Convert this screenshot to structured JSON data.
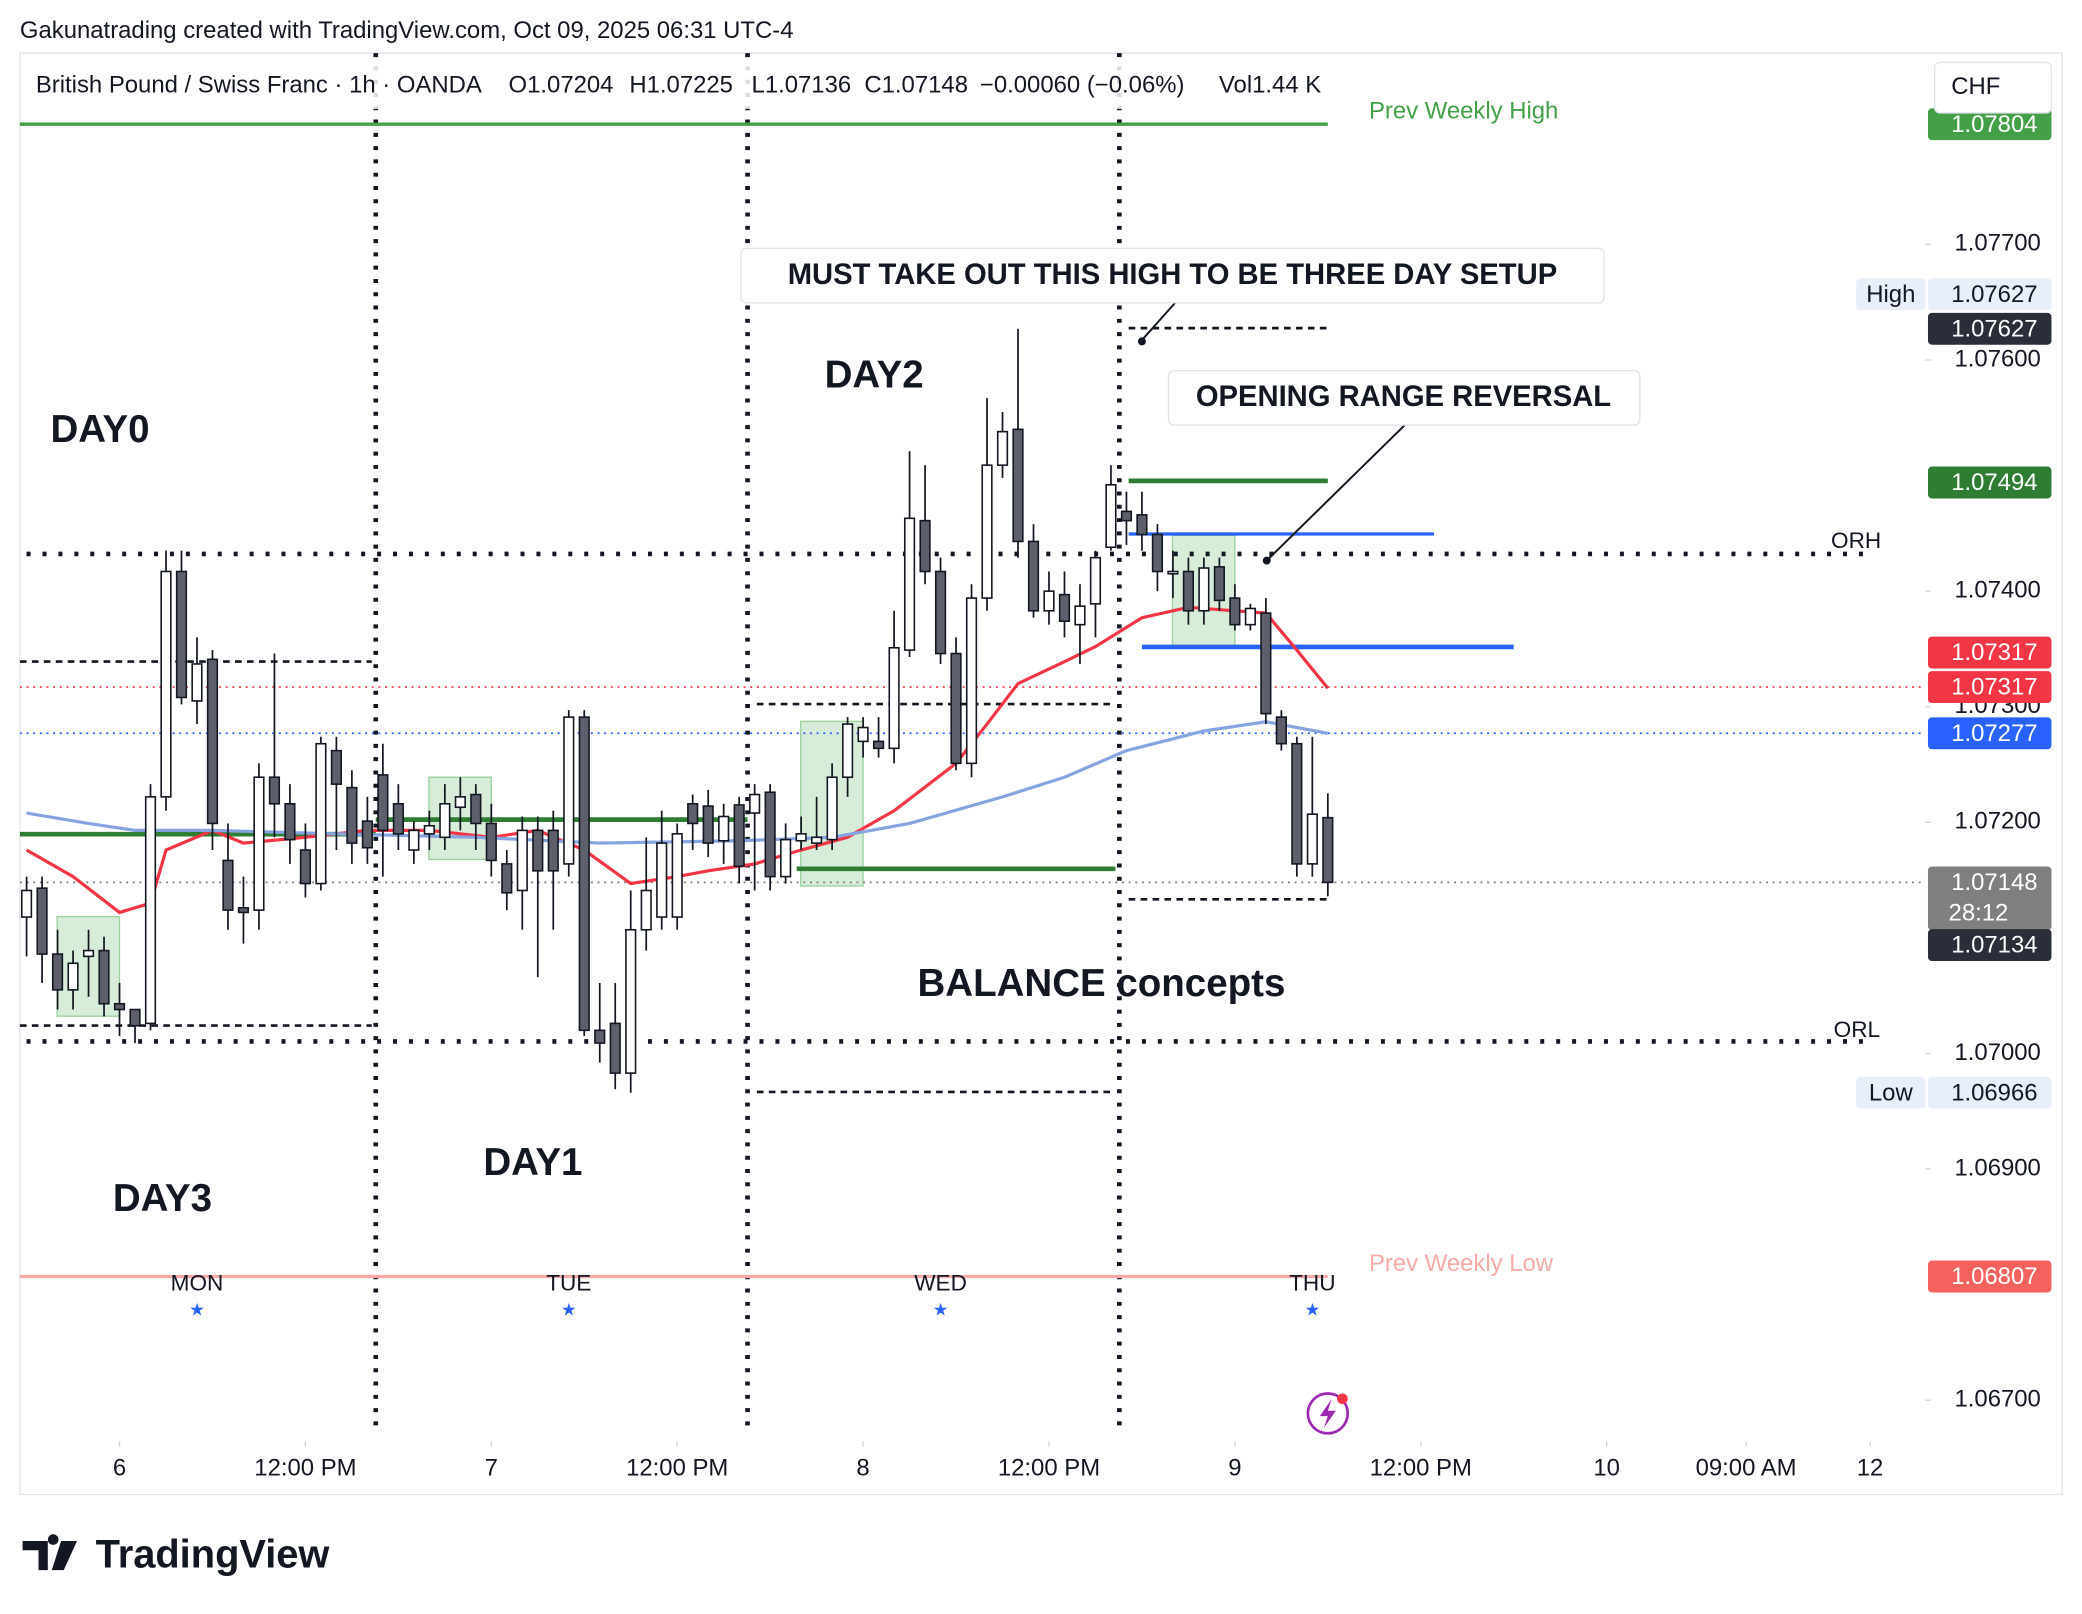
{
  "header": {
    "credit": "Gakunatrading created with TradingView.com, Oct 09, 2025 06:31 UTC-4",
    "symbol": "British Pound / Swiss Franc · 1h · OANDA",
    "open": "O1.07204",
    "high": "H1.07225",
    "low": "L1.07136",
    "close": "C1.07148",
    "change": "−0.00060 (−0.06%)",
    "volume": "Vol1.44 K",
    "currency": "CHF"
  },
  "annotations": {
    "day0": "DAY0",
    "day1": "DAY1",
    "day2": "DAY2",
    "day3": "DAY3",
    "must_take_out": "MUST TAKE OUT THIS HIGH TO BE THREE DAY SETUP",
    "opening_range_reversal": "OPENING RANGE REVERSAL",
    "balance": "BALANCE concepts",
    "orh": "ORH",
    "orl": "ORL"
  },
  "footer": {
    "logo": "TradingView"
  },
  "chart_data": {
    "type": "candlestick",
    "x": [
      -6,
      -5,
      -4,
      -3,
      -2,
      -1,
      0,
      1,
      2,
      3,
      4,
      5,
      6,
      7,
      8,
      9,
      10,
      11,
      12,
      13,
      14,
      15,
      16,
      17,
      18,
      19,
      20,
      21,
      22,
      23,
      24,
      25,
      26,
      27,
      28,
      29,
      30,
      31,
      32,
      33,
      34,
      35,
      36,
      37,
      38,
      39,
      40,
      41,
      42,
      43,
      44,
      45,
      46,
      47,
      48,
      49,
      50,
      51,
      52,
      53,
      54,
      55,
      56,
      57,
      58,
      59,
      60,
      61,
      62,
      63,
      64,
      65,
      66,
      67,
      68,
      69,
      70,
      71,
      72,
      73,
      74,
      75,
      76,
      77,
      78
    ],
    "open": [
      1.07118,
      1.07143,
      1.07086,
      1.07055,
      1.07084,
      1.07089,
      1.07043,
      1.07038,
      1.07026,
      1.07222,
      1.07417,
      1.07305,
      1.07341,
      1.07167,
      1.07126,
      1.07124,
      1.07239,
      1.07216,
      1.07176,
      1.07147,
      1.07262,
      1.0723,
      1.07201,
      1.07241,
      1.07216,
      1.07176,
      1.0719,
      1.07187,
      1.07213,
      1.07224,
      1.07199,
      1.07164,
      1.07141,
      1.07193,
      1.07193,
      1.07164,
      1.07291,
      1.0702,
      1.07026,
      1.06983,
      1.07107,
      1.07118,
      1.07118,
      1.07216,
      1.07214,
      1.07184,
      1.07215,
      1.07208,
      1.07226,
      1.07153,
      1.07184,
      1.07182,
      1.07185,
      1.07239,
      1.0727,
      1.0727,
      1.07264,
      1.07349,
      1.07461,
      1.07417,
      1.07346,
      1.07251,
      1.07394,
      1.07509,
      1.0754,
      1.07443,
      1.07383,
      1.07397,
      1.07371,
      1.07389,
      1.07438,
      1.07469,
      1.07466,
      1.07449,
      1.07415,
      1.07417,
      1.07383,
      1.07421,
      1.07394,
      1.07371,
      1.07381,
      1.07291,
      1.07268,
      1.07164,
      1.07204
    ],
    "high": [
      1.07153,
      1.07153,
      1.07107,
      1.07089,
      1.07107,
      1.07101,
      1.07061,
      1.07038,
      1.07233,
      1.07435,
      1.07435,
      1.0736,
      1.07349,
      1.07199,
      1.07153,
      1.07251,
      1.07346,
      1.07233,
      1.07199,
      1.07274,
      1.07274,
      1.07245,
      1.07222,
      1.07268,
      1.07233,
      1.07201,
      1.0721,
      1.07233,
      1.07239,
      1.07233,
      1.07216,
      1.07176,
      1.07205,
      1.07205,
      1.0721,
      1.07297,
      1.07297,
      1.07061,
      1.07061,
      1.07141,
      1.07187,
      1.0721,
      1.07199,
      1.07224,
      1.07228,
      1.07216,
      1.07222,
      1.07233,
      1.07233,
      1.07199,
      1.07205,
      1.07222,
      1.07251,
      1.07291,
      1.07291,
      1.07291,
      1.07383,
      1.07521,
      1.07509,
      1.07429,
      1.0736,
      1.07406,
      1.07567,
      1.07555,
      1.07627,
      1.07458,
      1.07417,
      1.07417,
      1.07406,
      1.07435,
      1.07509,
      1.07486,
      1.07486,
      1.07458,
      1.07435,
      1.07429,
      1.07429,
      1.07429,
      1.07406,
      1.07389,
      1.07394,
      1.07297,
      1.07274,
      1.07274,
      1.07225
    ],
    "low": [
      1.07084,
      1.07061,
      1.07038,
      1.07038,
      1.07049,
      1.07032,
      1.07015,
      1.07009,
      1.0702,
      1.0721,
      1.07302,
      1.07285,
      1.07176,
      1.07107,
      1.07095,
      1.07107,
      1.07187,
      1.07164,
      1.07135,
      1.07141,
      1.07176,
      1.07164,
      1.07164,
      1.07153,
      1.07176,
      1.07164,
      1.07176,
      1.07176,
      1.07193,
      1.07176,
      1.07153,
      1.07124,
      1.07107,
      1.07066,
      1.07107,
      1.07153,
      1.07015,
      1.06992,
      1.06969,
      1.06966,
      1.07089,
      1.07107,
      1.07107,
      1.07176,
      1.0717,
      1.07164,
      1.07147,
      1.07141,
      1.07141,
      1.07147,
      1.07176,
      1.07176,
      1.07176,
      1.07222,
      1.07256,
      1.07256,
      1.07251,
      1.07343,
      1.07406,
      1.07337,
      1.07245,
      1.07239,
      1.07383,
      1.07498,
      1.07429,
      1.07377,
      1.07371,
      1.0736,
      1.07337,
      1.0736,
      1.07435,
      1.0744,
      1.07435,
      1.074,
      1.07394,
      1.07371,
      1.07371,
      1.07383,
      1.07366,
      1.07366,
      1.07285,
      1.07262,
      1.07153,
      1.07153,
      1.07136
    ],
    "close": [
      1.07141,
      1.07086,
      1.07055,
      1.07078,
      1.07089,
      1.07043,
      1.07038,
      1.07024,
      1.07222,
      1.07417,
      1.07308,
      1.07337,
      1.07199,
      1.07124,
      1.07122,
      1.07239,
      1.07216,
      1.07185,
      1.07147,
      1.07268,
      1.07233,
      1.07182,
      1.07178,
      1.07193,
      1.0719,
      1.07193,
      1.07197,
      1.07216,
      1.07222,
      1.07199,
      1.07167,
      1.07139,
      1.07193,
      1.07158,
      1.07158,
      1.07291,
      1.0702,
      1.07009,
      1.06983,
      1.07107,
      1.07141,
      1.07182,
      1.0719,
      1.07199,
      1.07182,
      1.07205,
      1.07162,
      1.07224,
      1.07153,
      1.07185,
      1.0719,
      1.07187,
      1.07239,
      1.07285,
      1.07282,
      1.07264,
      1.07351,
      1.07463,
      1.07417,
      1.07346,
      1.07251,
      1.07394,
      1.07509,
      1.07538,
      1.07443,
      1.07383,
      1.074,
      1.07374,
      1.07387,
      1.07429,
      1.07492,
      1.07461,
      1.07449,
      1.07417,
      1.07417,
      1.07383,
      1.0742,
      1.07392,
      1.07371,
      1.07385,
      1.07294,
      1.07268,
      1.07164,
      1.07207,
      1.07148
    ],
    "up_color": "#ffffff",
    "down_color": "#5d606b",
    "wick_color": "#131722",
    "series": [
      {
        "color": "#f23645",
        "x": [
          -6,
          -3,
          0,
          2,
          3,
          6,
          8,
          12,
          16,
          20,
          24,
          27,
          30,
          33,
          36,
          38,
          41,
          44,
          47,
          50,
          54,
          56,
          58,
          61,
          63,
          66,
          69,
          72,
          74,
          76,
          78
        ],
        "values": [
          1.07176,
          1.07153,
          1.07122,
          1.0713,
          1.07176,
          1.07193,
          1.07182,
          1.07187,
          1.07193,
          1.07193,
          1.07187,
          1.07193,
          1.07176,
          1.07147,
          1.07153,
          1.07158,
          1.07164,
          1.07176,
          1.07187,
          1.0721,
          1.07251,
          1.07285,
          1.0732,
          1.07339,
          1.07352,
          1.07377,
          1.07386,
          1.07383,
          1.07381,
          1.07349,
          1.07316
        ]
      },
      {
        "color": "#86a4e0",
        "x": [
          -6,
          -2,
          1,
          6,
          14,
          23,
          31,
          40,
          46,
          51,
          57,
          61,
          65,
          70,
          74,
          78
        ],
        "values": [
          1.07208,
          1.07199,
          1.07193,
          1.07193,
          1.0719,
          1.07187,
          1.07182,
          1.07184,
          1.07187,
          1.07199,
          1.07222,
          1.07239,
          1.07262,
          1.07279,
          1.07287,
          1.07277
        ]
      }
    ],
    "xlim": [
      -6.43,
      116.57
    ],
    "xticks": [
      {
        "value": 0,
        "label": "6"
      },
      {
        "value": 12,
        "label": "12:00 PM"
      },
      {
        "value": 24,
        "label": "7"
      },
      {
        "value": 36,
        "label": "12:00 PM"
      },
      {
        "value": 48,
        "label": "8"
      },
      {
        "value": 60,
        "label": "12:00 PM"
      },
      {
        "value": 72,
        "label": "9"
      },
      {
        "value": 84,
        "label": "12:00 PM"
      },
      {
        "value": 96,
        "label": "10"
      },
      {
        "value": 105,
        "label": "09:00 AM"
      },
      {
        "value": 113,
        "label": "12"
      }
    ],
    "session_labels": [
      {
        "value": 5,
        "label": "MON"
      },
      {
        "value": 29,
        "label": "TUE"
      },
      {
        "value": 53,
        "label": "WED"
      },
      {
        "value": 77,
        "label": "THU"
      }
    ],
    "ylim": [
      1.066644,
      1.078655
    ],
    "yticks": [
      {
        "value": 1.077,
        "label": "1.07700"
      },
      {
        "value": 1.076,
        "label": "1.07600"
      },
      {
        "value": 1.074,
        "label": "1.07400"
      },
      {
        "value": 1.073,
        "label": "1.07300"
      },
      {
        "value": 1.072,
        "label": "1.07200"
      },
      {
        "value": 1.07,
        "label": "1.07000"
      },
      {
        "value": 1.069,
        "label": "1.06900"
      },
      {
        "value": 1.067,
        "label": "1.06700"
      }
    ],
    "grid": false,
    "levels": [
      {
        "value": 1.07804,
        "color": "#43a047",
        "text": "Prev Weekly High",
        "line": "solid"
      },
      {
        "value": 1.07627,
        "tag": "High",
        "color": "#e8eefa",
        "text_color": "#131722"
      },
      {
        "value": 1.07627,
        "color": "#2a2e39"
      },
      {
        "value": 1.07494,
        "color": "#2e7d32"
      },
      {
        "value": 1.07317,
        "color": "#f23645"
      },
      {
        "value": 1.07317,
        "color": "#f23645",
        "line": "dotted"
      },
      {
        "value": 1.07277,
        "color": "#2962ff",
        "line": "dotted"
      },
      {
        "value": 1.07148,
        "color": "#7f7f7f",
        "countdown": "28:12",
        "line": "dotted"
      },
      {
        "value": 1.07134,
        "color": "#2a2e39"
      },
      {
        "value": 1.06966,
        "tag": "Low",
        "color": "#e8eefa",
        "text_color": "#131722"
      },
      {
        "value": 1.06807,
        "color": "#f6625e",
        "line_color": "#f7aaa7",
        "text": "Prev Weekly Low",
        "line": "solid"
      }
    ]
  }
}
